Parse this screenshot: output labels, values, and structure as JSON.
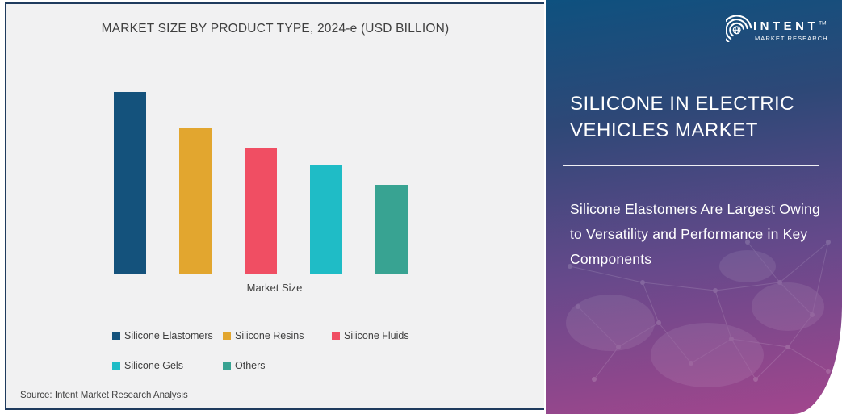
{
  "chart_data": {
    "type": "bar",
    "title": "MARKET SIZE BY PRODUCT TYPE, 2024-e (USD BILLION)",
    "xlabel": "Market Size",
    "ylabel": "",
    "categories": [
      "Silicone Elastomers",
      "Silicone Resins",
      "Silicone Fluids",
      "Silicone Gels",
      "Others"
    ],
    "values": [
      100,
      80,
      69,
      60,
      49
    ],
    "value_note": "y-axis is unlabeled in the source image; values are estimated relative bar heights (tallest bar = 100)",
    "colors": [
      "#14527C",
      "#E2A62F",
      "#F04E63",
      "#1FBCC6",
      "#38A392"
    ],
    "ylim": [
      0,
      100
    ],
    "grid": false,
    "y_axis_visible": false,
    "legend": {
      "position": "bottom",
      "entries": [
        "Silicone Elastomers",
        "Silicone Resins",
        "Silicone Fluids",
        "Silicone Gels",
        "Others"
      ]
    }
  },
  "source_note": "Source: Intent Market Research Analysis",
  "brand": {
    "logo_text": "INTENT",
    "logo_tm": "TM",
    "logo_subtext": "MARKET RESEARCH"
  },
  "panel": {
    "title": "SILICONE IN ELECTRIC VEHICLES MARKET",
    "subtitle": "Silicone Elastomers Are Largest Owing to Versatility and Performance in Key Components",
    "gradient_top": "#0E517F",
    "gradient_mid": "#66498B",
    "gradient_bottom": "#A3468D"
  }
}
